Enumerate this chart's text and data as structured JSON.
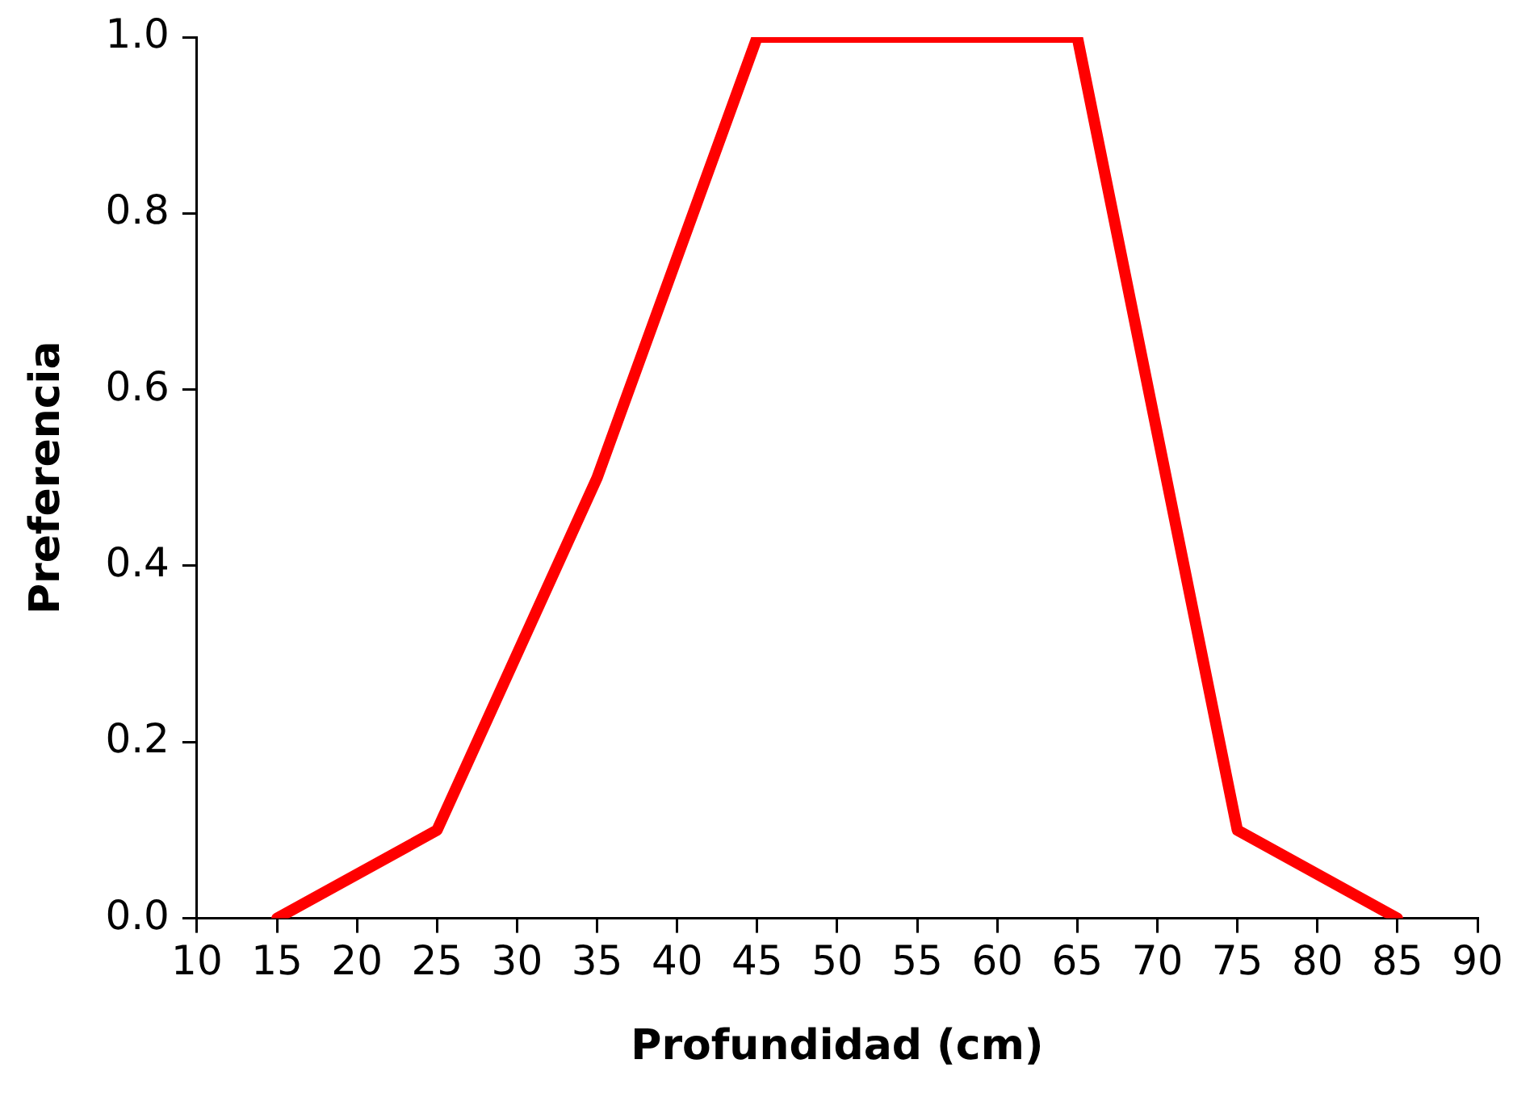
{
  "chart_data": {
    "type": "line",
    "xlabel": "Profundidad (cm)",
    "ylabel": "Preferencia",
    "x": [
      15,
      25,
      35,
      45,
      65,
      75,
      85
    ],
    "series": [
      {
        "color": "#ff0000",
        "values": [
          0,
          0.1,
          0.5,
          1,
          1,
          0.1,
          0
        ]
      }
    ],
    "xlim": [
      10,
      90
    ],
    "xticks": [
      10,
      15,
      20,
      25,
      30,
      35,
      40,
      45,
      50,
      55,
      60,
      65,
      70,
      75,
      80,
      85,
      90
    ],
    "ylim": [
      0,
      1
    ],
    "yticks": [
      {
        "value": 0,
        "label": "0.0"
      },
      {
        "value": 0.2,
        "label": "0.2"
      },
      {
        "value": 0.4,
        "label": "0.4"
      },
      {
        "value": 0.6,
        "label": "0.6"
      },
      {
        "value": 0.8,
        "label": "0.8"
      },
      {
        "value": 1,
        "label": "1.0"
      }
    ],
    "grid": false,
    "legend": false,
    "marker": "none",
    "line_style": "solid"
  }
}
